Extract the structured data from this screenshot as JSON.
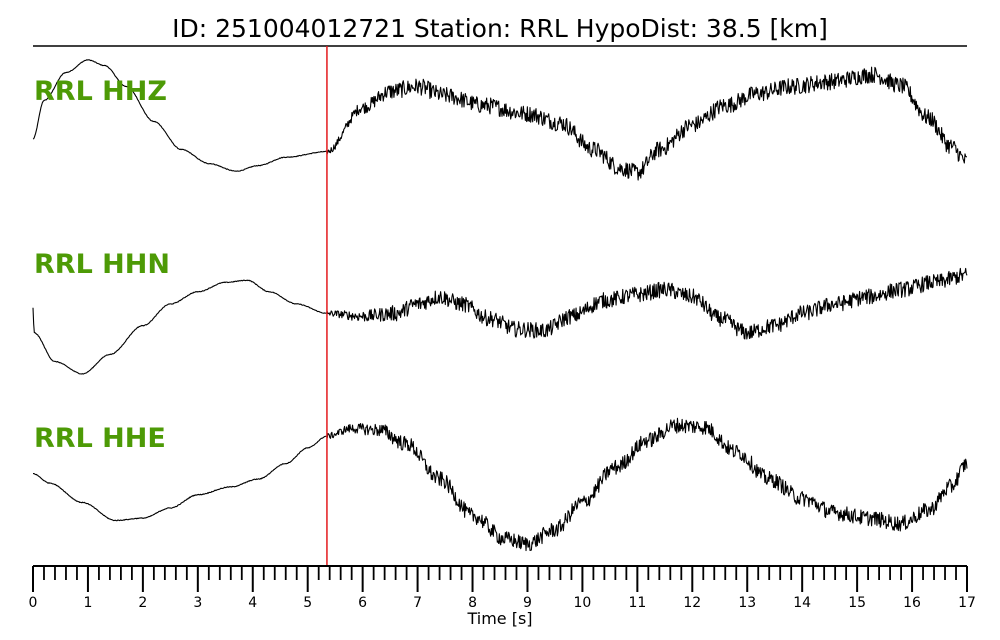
{
  "header": {
    "title": "ID: 251004012721   Station: RRL   HypoDist:    38.5 [km]"
  },
  "colors": {
    "label": "#4d9a06",
    "trace": "#000000",
    "pick": "#e41a1c",
    "axis": "#000000"
  },
  "chart_data": {
    "type": "line",
    "title": "ID: 251004012721   Station: RRL   HypoDist:    38.5 [km]",
    "xlabel": "Time [s]",
    "ylabel": "",
    "xlim": [
      0,
      17
    ],
    "x_ticks": [
      "0",
      "1",
      "2",
      "3",
      "4",
      "5",
      "6",
      "7",
      "8",
      "9",
      "10",
      "11",
      "12",
      "13",
      "14",
      "15",
      "16",
      "17"
    ],
    "minor_ticks_per_second": 5,
    "pick_time": 5.35,
    "grid": false,
    "series": [
      {
        "name": "RRL HHZ",
        "noise_onset": 5.35,
        "noise_amplitude": 0.12,
        "points": [
          [
            0,
            -0.2
          ],
          [
            0.2,
            0.35
          ],
          [
            0.6,
            0.75
          ],
          [
            1.0,
            0.93
          ],
          [
            1.3,
            0.85
          ],
          [
            1.7,
            0.55
          ],
          [
            2.2,
            0.05
          ],
          [
            2.7,
            -0.35
          ],
          [
            3.2,
            -0.55
          ],
          [
            3.7,
            -0.66
          ],
          [
            4.1,
            -0.58
          ],
          [
            4.6,
            -0.46
          ],
          [
            5.35,
            -0.38
          ],
          [
            6.0,
            0.25
          ],
          [
            6.5,
            0.48
          ],
          [
            7.0,
            0.55
          ],
          [
            7.5,
            0.42
          ],
          [
            8.2,
            0.28
          ],
          [
            9.0,
            0.16
          ],
          [
            9.6,
            0.03
          ],
          [
            10.2,
            -0.35
          ],
          [
            10.7,
            -0.62
          ],
          [
            11.0,
            -0.68
          ],
          [
            11.4,
            -0.35
          ],
          [
            12.0,
            0.0
          ],
          [
            12.6,
            0.28
          ],
          [
            13.2,
            0.45
          ],
          [
            13.8,
            0.55
          ],
          [
            14.5,
            0.62
          ],
          [
            15.3,
            0.72
          ],
          [
            15.8,
            0.56
          ],
          [
            16.3,
            0.1
          ],
          [
            16.7,
            -0.3
          ],
          [
            17.0,
            -0.52
          ]
        ]
      },
      {
        "name": "RRL HHN",
        "noise_onset": 5.35,
        "noise_amplitude": 0.11,
        "points": [
          [
            0,
            0.2
          ],
          [
            0.02,
            -0.15
          ],
          [
            0.4,
            -0.55
          ],
          [
            0.9,
            -0.72
          ],
          [
            1.4,
            -0.45
          ],
          [
            2.0,
            -0.05
          ],
          [
            2.5,
            0.25
          ],
          [
            3.0,
            0.42
          ],
          [
            3.5,
            0.55
          ],
          [
            3.9,
            0.58
          ],
          [
            4.3,
            0.42
          ],
          [
            4.8,
            0.25
          ],
          [
            5.35,
            0.12
          ],
          [
            6.0,
            0.08
          ],
          [
            6.6,
            0.12
          ],
          [
            7.0,
            0.25
          ],
          [
            7.4,
            0.35
          ],
          [
            7.8,
            0.25
          ],
          [
            8.3,
            0.05
          ],
          [
            8.8,
            -0.1
          ],
          [
            9.3,
            -0.12
          ],
          [
            9.8,
            0.08
          ],
          [
            10.4,
            0.3
          ],
          [
            11.0,
            0.38
          ],
          [
            11.5,
            0.45
          ],
          [
            12.0,
            0.35
          ],
          [
            12.5,
            0.05
          ],
          [
            13.0,
            -0.15
          ],
          [
            13.5,
            -0.05
          ],
          [
            14.0,
            0.12
          ],
          [
            14.6,
            0.25
          ],
          [
            15.2,
            0.35
          ],
          [
            15.8,
            0.45
          ],
          [
            16.4,
            0.55
          ],
          [
            17.0,
            0.65
          ]
        ]
      },
      {
        "name": "RRL HHE",
        "noise_onset": 5.35,
        "noise_amplitude": 0.1,
        "points": [
          [
            0,
            0.12
          ],
          [
            0.3,
            0.0
          ],
          [
            0.9,
            -0.25
          ],
          [
            1.5,
            -0.48
          ],
          [
            2.0,
            -0.45
          ],
          [
            2.5,
            -0.32
          ],
          [
            3.0,
            -0.15
          ],
          [
            3.6,
            -0.05
          ],
          [
            4.1,
            0.05
          ],
          [
            4.6,
            0.25
          ],
          [
            5.0,
            0.45
          ],
          [
            5.35,
            0.6
          ],
          [
            5.8,
            0.7
          ],
          [
            6.3,
            0.68
          ],
          [
            6.8,
            0.5
          ],
          [
            7.4,
            0.05
          ],
          [
            8.0,
            -0.42
          ],
          [
            8.6,
            -0.72
          ],
          [
            9.0,
            -0.78
          ],
          [
            9.5,
            -0.6
          ],
          [
            10.0,
            -0.25
          ],
          [
            10.6,
            0.2
          ],
          [
            11.2,
            0.55
          ],
          [
            11.7,
            0.74
          ],
          [
            12.2,
            0.72
          ],
          [
            12.8,
            0.4
          ],
          [
            13.4,
            0.05
          ],
          [
            14.0,
            -0.2
          ],
          [
            14.6,
            -0.38
          ],
          [
            15.2,
            -0.45
          ],
          [
            15.8,
            -0.52
          ],
          [
            16.3,
            -0.35
          ],
          [
            16.7,
            -0.05
          ],
          [
            17.0,
            0.25
          ]
        ]
      }
    ]
  }
}
